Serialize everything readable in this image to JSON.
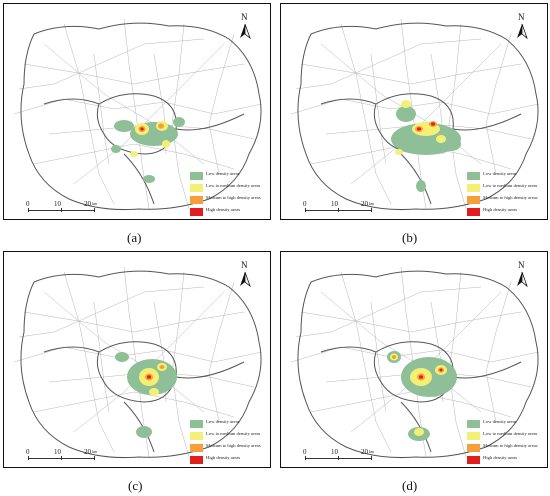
{
  "panels": [
    {
      "id": "a",
      "caption": "(a)"
    },
    {
      "id": "b",
      "caption": "(b)"
    },
    {
      "id": "c",
      "caption": "(c)"
    },
    {
      "id": "d",
      "caption": "(d)"
    }
  ],
  "legend": {
    "items": [
      {
        "label": "Low density areas",
        "color": "#8fbf96"
      },
      {
        "label": "Low to medium density areas",
        "color": "#f4f075"
      },
      {
        "label": "Medium to high density areas",
        "color": "#f5a03a"
      },
      {
        "label": "High density areas",
        "color": "#e11f1f"
      }
    ]
  },
  "compass": {
    "letter": "N"
  },
  "scale_bar": {
    "ticks": [
      "0",
      "10",
      "20"
    ],
    "unit": "km"
  }
}
